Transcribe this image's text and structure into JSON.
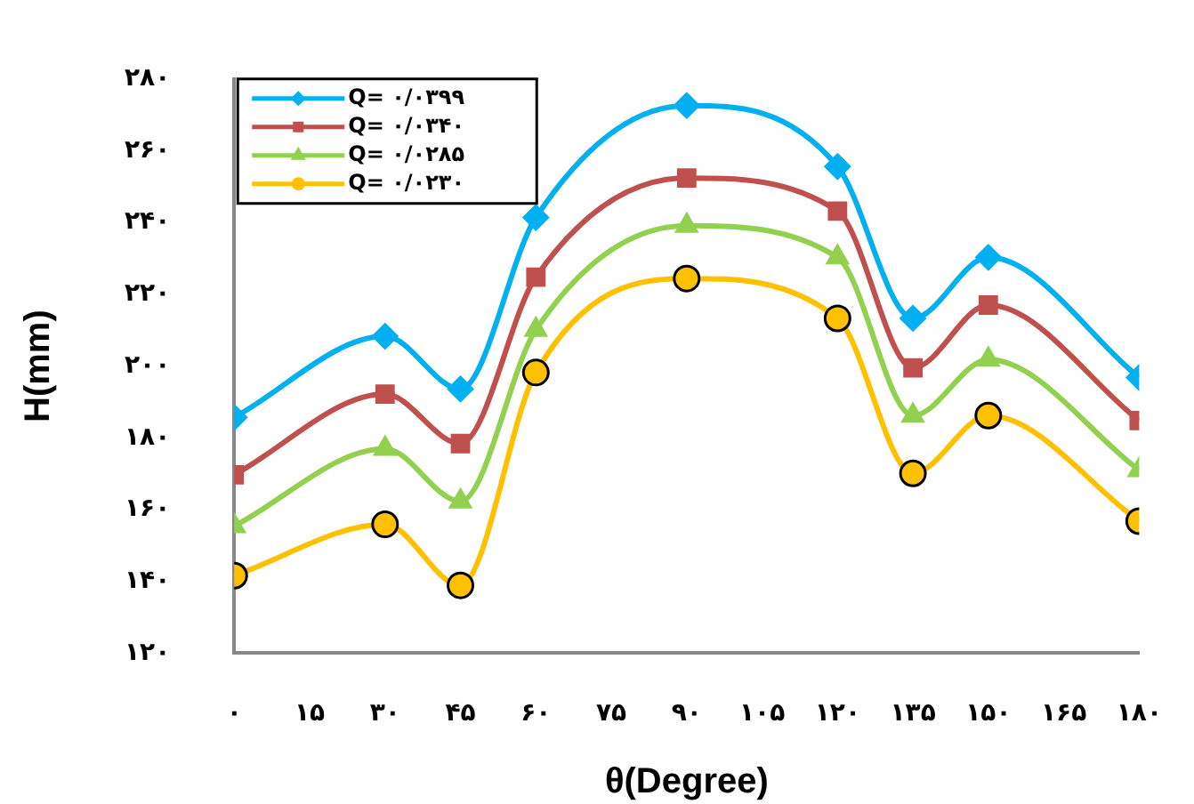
{
  "chart_data": {
    "type": "line",
    "xlabel": "θ(Degree)",
    "ylabel": "H(mm)",
    "x": [
      0,
      30,
      45,
      60,
      90,
      120,
      135,
      150,
      180
    ],
    "series": [
      {
        "name": "Q= ۰/۰۳۹۹",
        "color": "#00b0f0",
        "marker": "diamond",
        "values": [
          185.7,
          208.3,
          193.6,
          241.4,
          272.6,
          255.6,
          213.3,
          230.3,
          196.8
        ]
      },
      {
        "name": "Q= ۰/۰۳۴۰",
        "color": "#c0504d",
        "marker": "square",
        "values": [
          169.7,
          192.2,
          178.4,
          224.8,
          252.4,
          243.2,
          199.5,
          217.0,
          184.8
        ]
      },
      {
        "name": "Q= ۰/۰۲۸۵",
        "color": "#92d050",
        "marker": "triangle",
        "values": [
          155.4,
          177.0,
          162.3,
          210.1,
          239.1,
          230.3,
          186.2,
          201.8,
          171.0
        ]
      },
      {
        "name": "Q= ۰/۰۲۳۰",
        "color": "#ffc000",
        "marker": "circle",
        "values": [
          141.6,
          155.9,
          138.9,
          198.2,
          224.4,
          213.3,
          170.1,
          186.2,
          156.8
        ]
      }
    ],
    "xlim": [
      0,
      180
    ],
    "xticks": [
      {
        "value": 0,
        "label": "۰"
      },
      {
        "value": 15,
        "label": "۱۵"
      },
      {
        "value": 30,
        "label": "۳۰"
      },
      {
        "value": 45,
        "label": "۴۵"
      },
      {
        "value": 60,
        "label": "۶۰"
      },
      {
        "value": 75,
        "label": "۷۵"
      },
      {
        "value": 90,
        "label": "۹۰"
      },
      {
        "value": 105,
        "label": "۱۰۵"
      },
      {
        "value": 120,
        "label": "۱۲۰"
      },
      {
        "value": 135,
        "label": "۱۳۵"
      },
      {
        "value": 150,
        "label": "۱۵۰"
      },
      {
        "value": 165,
        "label": "۱۶۵"
      },
      {
        "value": 180,
        "label": "۱۸۰"
      }
    ],
    "ylim": [
      120,
      280
    ],
    "yticks": [
      {
        "value": 120,
        "label": "۱۲۰"
      },
      {
        "value": 140,
        "label": "۱۴۰"
      },
      {
        "value": 160,
        "label": "۱۶۰"
      },
      {
        "value": 180,
        "label": "۱۸۰"
      },
      {
        "value": 200,
        "label": "۲۰۰"
      },
      {
        "value": 220,
        "label": "۲۲۰"
      },
      {
        "value": 240,
        "label": "۲۴۰"
      },
      {
        "value": 260,
        "label": "۲۶۰"
      },
      {
        "value": 280,
        "label": "۲۸۰"
      }
    ],
    "grid": false,
    "legend": "top left"
  }
}
